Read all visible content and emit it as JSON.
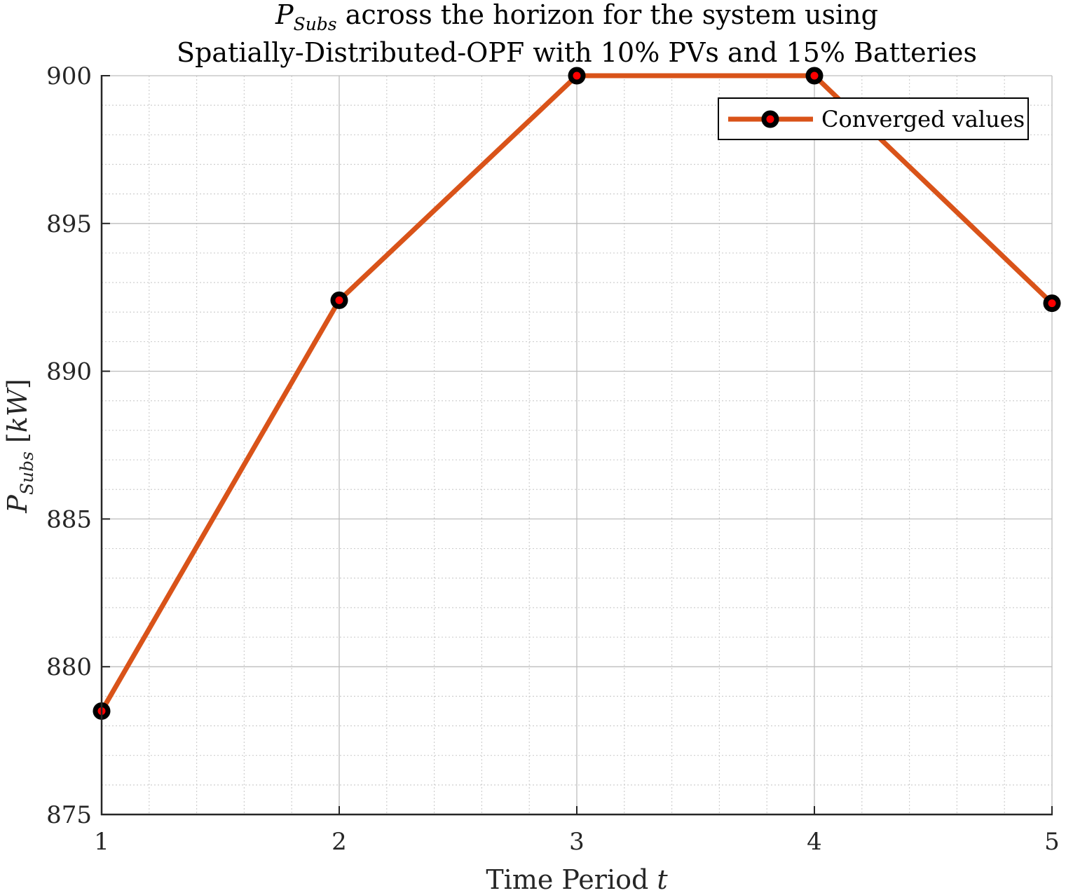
{
  "chart_data": {
    "type": "line",
    "title": {
      "line1_symbol": "P",
      "line1_subscript": "Subs",
      "line1_rest": " across the horizon for the system using",
      "line2": "Spatially-Distributed-OPF with 10% PVs and 15% Batteries"
    },
    "xlabel": {
      "text": "Time Period ",
      "variable": "t"
    },
    "ylabel": {
      "symbol": "P",
      "subscript": "Subs",
      "unit_open": " [",
      "unit": "kW",
      "unit_close": "]"
    },
    "x": [
      1,
      2,
      3,
      4,
      5
    ],
    "series": [
      {
        "name": "Converged values",
        "values": [
          878.5,
          892.4,
          900.0,
          900.0,
          892.3
        ],
        "line_color": "#d95319",
        "marker_edge_color": "#000000",
        "marker_face_color": "#ff0000"
      }
    ],
    "xlim": [
      1,
      5
    ],
    "ylim": [
      875,
      900
    ],
    "x_ticks": [
      1,
      2,
      3,
      4,
      5
    ],
    "x_tick_labels": [
      "1",
      "2",
      "3",
      "4",
      "5"
    ],
    "y_ticks": [
      875,
      880,
      885,
      890,
      895,
      900
    ],
    "y_tick_labels": [
      "875",
      "880",
      "885",
      "890",
      "895",
      "900"
    ],
    "x_minor_step": 0.2,
    "y_minor_step": 1,
    "grid": true,
    "minor_grid": true,
    "legend_position": "top-right"
  }
}
